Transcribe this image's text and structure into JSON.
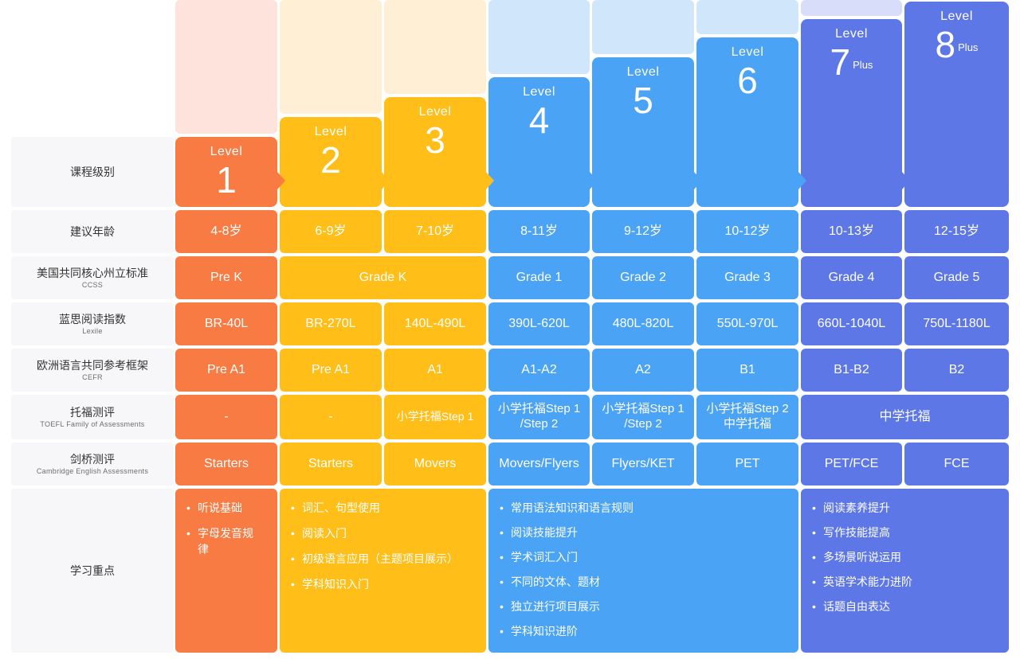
{
  "colors": {
    "orange": "#f77b43",
    "yellow": "#ffbe18",
    "blue": "#4aa3f4",
    "indigo": "#5e77e7",
    "label_bg": "#f7f7f9"
  },
  "row_labels": {
    "level": {
      "zh": "课程级别",
      "en": ""
    },
    "age": {
      "zh": "建议年龄",
      "en": ""
    },
    "ccss": {
      "zh": "美国共同核心州立标准",
      "en": "CCSS"
    },
    "lexile": {
      "zh": "蓝思阅读指数",
      "en": "Lexile"
    },
    "cefr": {
      "zh": "欧洲语言共同参考框架",
      "en": "CEFR"
    },
    "toefl": {
      "zh": "托福测评",
      "en": "TOEFL Family of Assessments"
    },
    "cambridge": {
      "zh": "剑桥测评",
      "en": "Cambridge English Assessments"
    },
    "focus": {
      "zh": "学习重点",
      "en": ""
    }
  },
  "levels": [
    {
      "word": "Level",
      "num": "1",
      "plus": ""
    },
    {
      "word": "Level",
      "num": "2",
      "plus": ""
    },
    {
      "word": "Level",
      "num": "3",
      "plus": ""
    },
    {
      "word": "Level",
      "num": "4",
      "plus": ""
    },
    {
      "word": "Level",
      "num": "5",
      "plus": ""
    },
    {
      "word": "Level",
      "num": "6",
      "plus": ""
    },
    {
      "word": "Level",
      "num": "7",
      "plus": "Plus"
    },
    {
      "word": "Level",
      "num": "8",
      "plus": "Plus"
    }
  ],
  "ages": [
    "4-8岁",
    "6-9岁",
    "7-10岁",
    "8-11岁",
    "9-12岁",
    "10-12岁",
    "10-13岁",
    "12-15岁"
  ],
  "ccss": [
    "Pre K",
    "Grade K",
    "Grade 1",
    "Grade 2",
    "Grade 3",
    "Grade 4",
    "Grade 5"
  ],
  "lexile": [
    "BR-40L",
    "BR-270L",
    "140L-490L",
    "390L-620L",
    "480L-820L",
    "550L-970L",
    "660L-1040L",
    "750L-1180L"
  ],
  "cefr": [
    "Pre A1",
    "Pre A1",
    "A1",
    "A1-A2",
    "A2",
    "B1",
    "B1-B2",
    "B2"
  ],
  "toefl": [
    {
      "line1": "-",
      "line2": ""
    },
    {
      "line1": "-",
      "line2": ""
    },
    {
      "line1": "小学托福Step 1",
      "line2": ""
    },
    {
      "line1": "小学托福Step 1",
      "line2": "/Step 2"
    },
    {
      "line1": "小学托福Step 1",
      "line2": "/Step 2"
    },
    {
      "line1": "小学托福Step 2",
      "line2": "中学托福"
    },
    {
      "line1": "中学托福",
      "line2": ""
    }
  ],
  "cambridge": [
    "Starters",
    "Starters",
    "Movers",
    "Movers/Flyers",
    "Flyers/KET",
    "PET",
    "PET/FCE",
    "FCE"
  ],
  "focus": {
    "orange": [
      "听说基础",
      "字母发音规律"
    ],
    "yellow": [
      "词汇、句型使用",
      "阅读入门",
      "初级语言应用（主题项目展示）",
      "学科知识入门"
    ],
    "blue": [
      "常用语法知识和语言规则",
      "阅读技能提升",
      "学术词汇入门",
      "不同的文体、题材",
      "独立进行项目展示",
      "学科知识进阶"
    ],
    "indigo": [
      "阅读素养提升",
      "写作技能提高",
      "多场景听说运用",
      "英语学术能力进阶",
      "话题自由表达"
    ]
  }
}
